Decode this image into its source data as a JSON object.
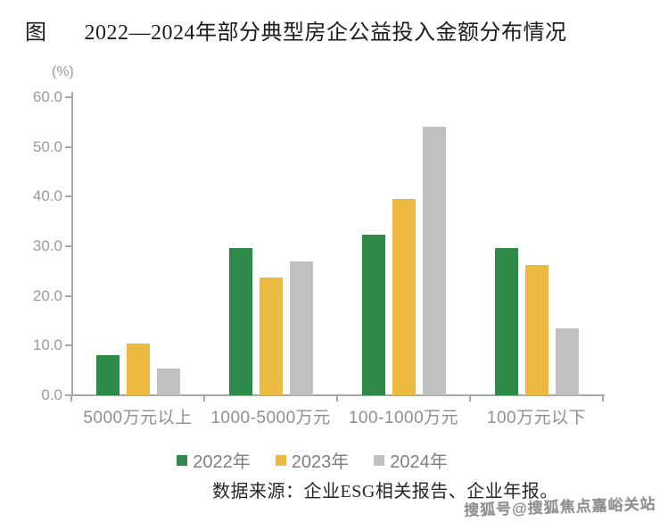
{
  "figure_label": "图",
  "title": "2022—2024年部分典型房企公益投入金额分布情况",
  "unit_label": "(%)",
  "source": "数据来源：企业ESG相关报告、企业年报。",
  "watermark": "搜狐号@搜狐焦点嘉峪关站",
  "colors": {
    "series_2022": "#2f8a49",
    "series_2023": "#ecba41",
    "series_2024": "#c0c0c0",
    "axis": "#a8a8a8",
    "tick_text": "#9a9a9a"
  },
  "chart_data": {
    "type": "bar",
    "title": "2022—2024年部分典型房企公益投入金额分布情况",
    "categories": [
      "5000万元以上",
      "1000-5000万元",
      "100-1000万元",
      "100万元以下"
    ],
    "series": [
      {
        "name": "2022年",
        "color": "#2f8a49",
        "values": [
          8.1,
          29.7,
          32.4,
          29.7
        ]
      },
      {
        "name": "2023年",
        "color": "#ecba41",
        "values": [
          10.4,
          23.7,
          39.5,
          26.3
        ]
      },
      {
        "name": "2024年",
        "color": "#c0c0c0",
        "values": [
          5.4,
          27.0,
          54.0,
          13.4
        ]
      }
    ],
    "xlabel": "",
    "ylabel": "(%)",
    "ylim": [
      0,
      60
    ],
    "yticks": [
      0.0,
      10.0,
      20.0,
      30.0,
      40.0,
      50.0,
      60.0
    ],
    "grid": false,
    "legend_position": "bottom"
  }
}
